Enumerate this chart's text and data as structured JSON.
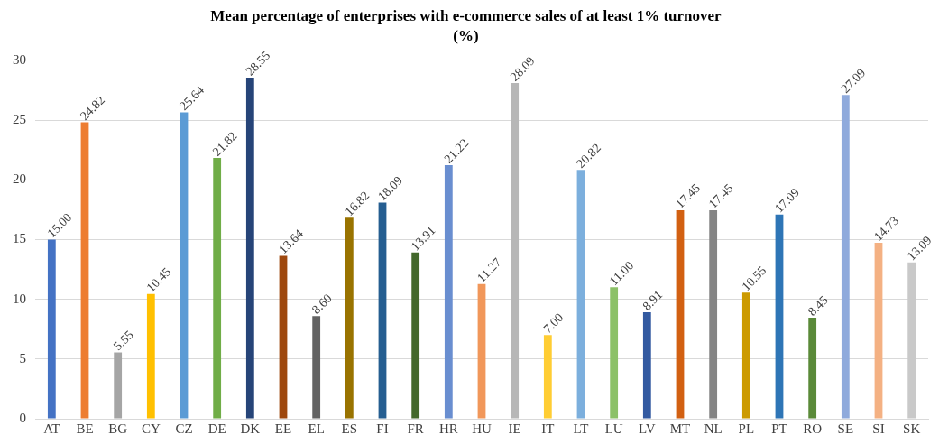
{
  "chart_data": {
    "type": "bar",
    "title": "Mean percentage of enterprises with e-commerce sales of at least 1% turnover",
    "subtitle": "(%)",
    "categories": [
      "AT",
      "BE",
      "BG",
      "CY",
      "CZ",
      "DE",
      "DK",
      "EE",
      "EL",
      "ES",
      "FI",
      "FR",
      "HR",
      "HU",
      "IE",
      "IT",
      "LT",
      "LU",
      "LV",
      "MT",
      "NL",
      "PL",
      "PT",
      "RO",
      "SE",
      "SI",
      "SK"
    ],
    "values": [
      15.0,
      24.82,
      5.55,
      10.45,
      25.64,
      21.82,
      28.55,
      13.64,
      8.6,
      16.82,
      18.09,
      13.91,
      21.22,
      11.27,
      28.09,
      7.0,
      20.82,
      11.0,
      8.91,
      17.45,
      17.45,
      10.55,
      17.09,
      8.45,
      27.09,
      14.73,
      13.09
    ],
    "colors": [
      "#4472c4",
      "#ed7d31",
      "#a5a5a5",
      "#ffc000",
      "#5b9bd5",
      "#70ad47",
      "#264478",
      "#9e480e",
      "#636363",
      "#997300",
      "#255e91",
      "#43682b",
      "#698ed0",
      "#f1975a",
      "#b7b7b7",
      "#ffcd33",
      "#7cafdd",
      "#8cc168",
      "#335aa1",
      "#d26012",
      "#848484",
      "#cc9a00",
      "#2e75b6",
      "#5a8a39",
      "#8faadc",
      "#f4b183",
      "#c9c9c9"
    ],
    "value_labels": [
      "15.00",
      "24.82",
      "5.55",
      "10.45",
      "25.64",
      "21.82",
      "28.55",
      "13.64",
      "8.60",
      "16.82",
      "18.09",
      "13.91",
      "21.22",
      "11.27",
      "28.09",
      "7.00",
      "20.82",
      "11.00",
      "8.91",
      "17.45",
      "17.45",
      "10.55",
      "17.09",
      "8.45",
      "27.09",
      "14.73",
      "13.09"
    ],
    "ylim": [
      0,
      30
    ],
    "yticks": [
      0,
      5,
      10,
      15,
      20,
      25,
      30
    ],
    "grid": "y",
    "legend": false
  }
}
